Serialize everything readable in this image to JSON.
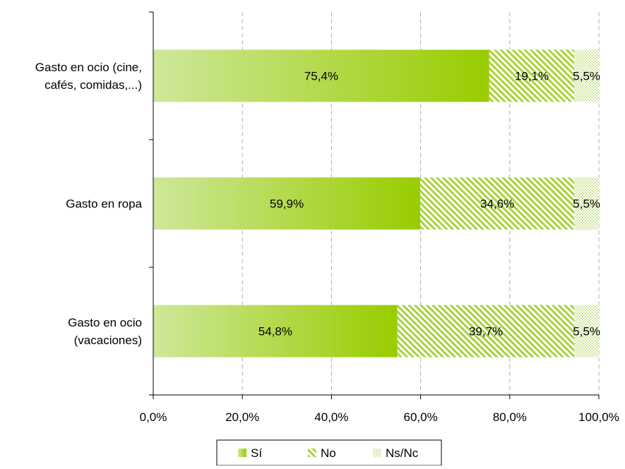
{
  "chart_data": {
    "type": "bar",
    "orientation": "horizontal",
    "stacked": true,
    "categories": [
      [
        "Gasto en ocio (cine,",
        "cafés, comidas,...)"
      ],
      [
        "Gasto en ropa"
      ],
      [
        "Gasto en ocio",
        "(vacaciones)"
      ]
    ],
    "series": [
      {
        "name": "Sí",
        "values": [
          75.4,
          59.9,
          54.8
        ],
        "labels": [
          "75,4%",
          "59,9%",
          "54,8%"
        ],
        "color": "#99cc00",
        "color_light": "#cce699",
        "fill": "gradient"
      },
      {
        "name": "No",
        "values": [
          19.1,
          34.6,
          39.7
        ],
        "labels": [
          "19,1%",
          "34,6%",
          "39,7%"
        ],
        "color": "#99cc00",
        "fill": "diagonal-stripes"
      },
      {
        "name": "Ns/Nc",
        "values": [
          5.5,
          5.5,
          5.5
        ],
        "labels": [
          "5,5%",
          "5,5%",
          "5,5%"
        ],
        "color": "#99cc00",
        "fill": "dots"
      }
    ],
    "xlim": [
      0,
      100
    ],
    "xticks": [
      0,
      20,
      40,
      60,
      80,
      100
    ],
    "xtick_labels": [
      "0,0%",
      "20,0%",
      "40,0%",
      "60,0%",
      "80,0%",
      "100,0%"
    ],
    "grid": "vertical-dashed",
    "legend_position": "bottom",
    "title": "",
    "xlabel": "",
    "ylabel": ""
  }
}
